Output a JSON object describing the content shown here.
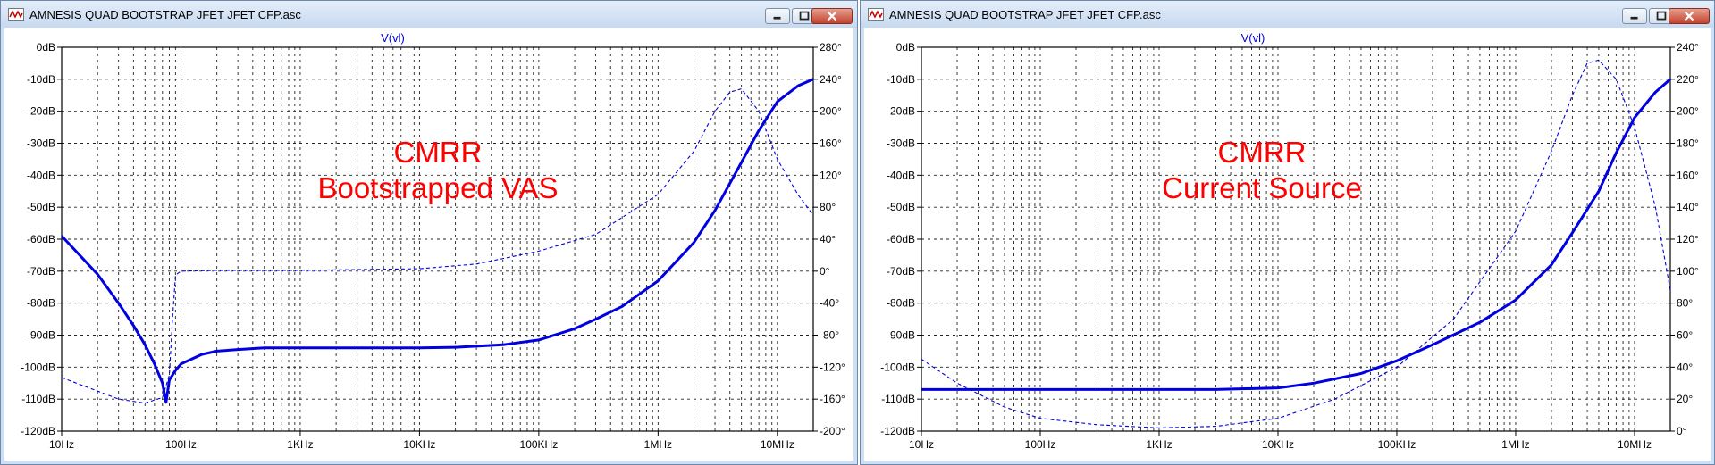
{
  "colors": {
    "trace": "#0000e0",
    "grid": "#000000",
    "annotation": "#ff0000"
  },
  "windows": [
    {
      "title": "AMNESIS QUAD BOOTSTRAP JFET JFET CFP.asc",
      "trace_label": "V(vl)",
      "annotation": [
        "CMRR",
        "Bootstrapped VAS"
      ],
      "chart_data": {
        "type": "line",
        "title": "V(vl)",
        "x_scale": "log",
        "xlim": [
          10,
          20000000
        ],
        "x_tick_labels": [
          "10Hz",
          "100Hz",
          "1KHz",
          "10KHz",
          "100KHz",
          "1MHz",
          "10MHz"
        ],
        "y_tick_labels": [
          "0dB",
          "-10dB",
          "-20dB",
          "-30dB",
          "-40dB",
          "-50dB",
          "-60dB",
          "-70dB",
          "-80dB",
          "-90dB",
          "-100dB",
          "-110dB",
          "-120dB"
        ],
        "ylim": [
          -120,
          0
        ],
        "y2_tick_labels": [
          "280°",
          "240°",
          "200°",
          "160°",
          "120°",
          "80°",
          "40°",
          "0°",
          "-40°",
          "-80°",
          "-120°",
          "-160°",
          "-200°"
        ],
        "y2lim": [
          -200,
          280
        ],
        "grid": true,
        "series": [
          {
            "style": "solid",
            "axis": "y",
            "x": [
              10,
              15,
              20,
              30,
              40,
              50,
              60,
              70,
              75,
              80,
              90,
              100,
              150,
              200,
              300,
              500,
              1000,
              2000,
              5000,
              10000,
              20000,
              50000,
              100000,
              200000,
              300000,
              500000,
              1000000,
              2000000,
              3000000,
              5000000,
              7000000,
              10000000,
              15000000,
              20000000
            ],
            "y": [
              -59,
              -66,
              -71,
              -80,
              -87,
              -93,
              -99,
              -105,
              -111,
              -104,
              -101,
              -99,
              -96,
              -95,
              -94.5,
              -94,
              -94,
              -94,
              -94,
              -94,
              -93.8,
              -93,
              -91.5,
              -88,
              -85,
              -81,
              -73,
              -61,
              -51,
              -36,
              -26,
              -17,
              -12,
              -10
            ]
          },
          {
            "style": "dashed",
            "axis": "y2",
            "x": [
              10,
              20,
              30,
              50,
              70,
              80,
              85,
              90,
              100,
              200,
              1000,
              10000,
              30000,
              100000,
              300000,
              1000000,
              2000000,
              3000000,
              4000000,
              5000000,
              7000000,
              10000000,
              15000000,
              20000000
            ],
            "y": [
              -133,
              -150,
              -160,
              -165,
              -158,
              -130,
              -60,
              -5,
              0,
              1,
              1,
              3,
              9,
              25,
              46,
              96,
              150,
              200,
              224,
              228,
              200,
              140,
              95,
              70
            ]
          }
        ]
      }
    },
    {
      "title": "AMNESIS QUAD BOOTSTRAP JFET JFET CFP.asc",
      "trace_label": "V(vl)",
      "annotation": [
        "CMRR",
        "Current Source"
      ],
      "chart_data": {
        "type": "line",
        "title": "V(vl)",
        "x_scale": "log",
        "xlim": [
          10,
          20000000
        ],
        "x_tick_labels": [
          "10Hz",
          "100Hz",
          "1KHz",
          "10KHz",
          "100KHz",
          "1MHz",
          "10MHz"
        ],
        "y_tick_labels": [
          "0dB",
          "-10dB",
          "-20dB",
          "-30dB",
          "-40dB",
          "-50dB",
          "-60dB",
          "-70dB",
          "-80dB",
          "-90dB",
          "-100dB",
          "-110dB",
          "-120dB"
        ],
        "ylim": [
          -120,
          0
        ],
        "y2_tick_labels": [
          "240°",
          "220°",
          "200°",
          "180°",
          "160°",
          "140°",
          "120°",
          "100°",
          "80°",
          "60°",
          "40°",
          "20°",
          "0°"
        ],
        "y2lim": [
          0,
          240
        ],
        "grid": true,
        "series": [
          {
            "style": "solid",
            "axis": "y",
            "x": [
              10,
              100,
              1000,
              3000,
              10000,
              20000,
              50000,
              100000,
              200000,
              500000,
              1000000,
              2000000,
              3000000,
              5000000,
              7000000,
              10000000,
              15000000,
              20000000
            ],
            "y": [
              -107,
              -107,
              -107,
              -107,
              -106.5,
              -105,
              -102,
              -98,
              -93,
              -86,
              -79,
              -68,
              -58,
              -45,
              -33,
              -22,
              -14,
              -10
            ]
          },
          {
            "style": "dashed",
            "axis": "y2",
            "x": [
              10,
              20,
              50,
              100,
              300,
              1000,
              3000,
              10000,
              30000,
              100000,
              300000,
              1000000,
              2000000,
              3000000,
              4000000,
              5000000,
              7000000,
              10000000,
              15000000,
              20000000
            ],
            "y": [
              45,
              30,
              15,
              8,
              4,
              2,
              3,
              8,
              20,
              40,
              70,
              125,
              175,
              210,
              230,
              232,
              220,
              190,
              140,
              88
            ]
          }
        ]
      }
    }
  ]
}
